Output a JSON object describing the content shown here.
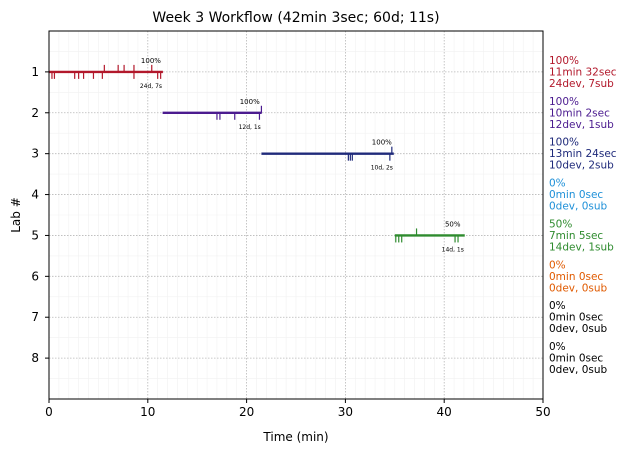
{
  "chart_data": {
    "type": "timeline",
    "title": "Week 3 Workflow (42min 3sec; 60d; 11s)",
    "xlabel": "Time (min)",
    "ylabel": "Lab #",
    "xlim": [
      0,
      50
    ],
    "ylim": [
      9,
      0
    ],
    "xticks": [
      0,
      10,
      20,
      30,
      40,
      50
    ],
    "yticks": [
      1,
      2,
      3,
      4,
      5,
      6,
      7,
      8
    ],
    "grid": true,
    "labs": [
      {
        "lab": 1,
        "color": "#b2182b",
        "start": 0.0,
        "end": 11.53,
        "pct_label": "100%",
        "count_label": "24d, 7s",
        "side": [
          "100%",
          "11min 32sec",
          "24dev, 7sub"
        ],
        "down_ticks": [
          0.3,
          0.55,
          2.6,
          3.0,
          3.5,
          4.5,
          5.4,
          8.6,
          11.0,
          11.3
        ],
        "up_ticks": [
          5.6,
          7.0,
          7.6,
          8.6,
          10.4
        ]
      },
      {
        "lab": 2,
        "color": "#4b1b8f",
        "start": 11.5,
        "end": 21.53,
        "pct_label": "100%",
        "count_label": "12d, 1s",
        "side": [
          "100%",
          "10min 2sec",
          "12dev, 1sub"
        ],
        "down_ticks": [
          17.0,
          17.3,
          18.8,
          21.3
        ],
        "up_ticks": [
          21.5
        ]
      },
      {
        "lab": 3,
        "color": "#1f2a7a",
        "start": 21.5,
        "end": 34.9,
        "pct_label": "100%",
        "count_label": "10d, 2s",
        "side": [
          "100%",
          "13min 24sec",
          "10dev, 2sub"
        ],
        "down_ticks": [
          30.3,
          30.5,
          30.7,
          34.5
        ],
        "up_ticks": [
          34.7
        ]
      },
      {
        "lab": 4,
        "color": "#1e90d8",
        "side": [
          "0%",
          "0min 0sec",
          "0dev, 0sub"
        ]
      },
      {
        "lab": 5,
        "color": "#2e8b2e",
        "start": 35.0,
        "end": 42.08,
        "pct_label": "50%",
        "count_label": "14d, 1s",
        "side": [
          "50%",
          "7min 5sec",
          "14dev, 1sub"
        ],
        "down_ticks": [
          35.1,
          35.4,
          35.7,
          41.1,
          41.4
        ],
        "up_ticks": [
          37.2
        ]
      },
      {
        "lab": 6,
        "color": "#e05a00",
        "side": [
          "0%",
          "0min 0sec",
          "0dev, 0sub"
        ]
      },
      {
        "lab": 7,
        "color": "#000000",
        "side": [
          "0%",
          "0min 0sec",
          "0dev, 0sub"
        ]
      },
      {
        "lab": 8,
        "color": "#000000",
        "side": [
          "0%",
          "0min 0sec",
          "0dev, 0sub"
        ]
      }
    ]
  }
}
